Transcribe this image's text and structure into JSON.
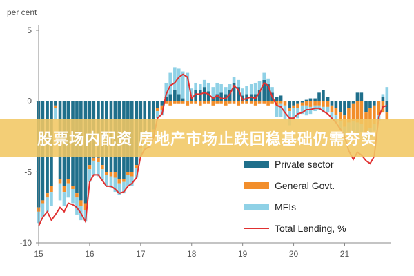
{
  "banner": {
    "text": "股票场内配资 房地产市场止跌回稳基础仍需夯实"
  },
  "chart_data": {
    "type": "bar",
    "stacked": true,
    "ylabel": "per cent",
    "ylim": [
      -10,
      5
    ],
    "yticks": [
      5,
      0,
      -5,
      -10
    ],
    "xlim": [
      15,
      21.9
    ],
    "xticks": [
      15,
      16,
      17,
      18,
      19,
      20,
      21
    ],
    "grid": false,
    "legend": "bottom-right",
    "colors": {
      "Private sector": "#1f6f8b",
      "General Govt.": "#f28e2b",
      "MFIs": "#8fd1e6",
      "Total Lending, %": "#e03030",
      "axis": "#888888"
    },
    "x": [
      15.0,
      15.08,
      15.17,
      15.25,
      15.33,
      15.42,
      15.5,
      15.58,
      15.67,
      15.75,
      15.83,
      15.92,
      16.0,
      16.08,
      16.17,
      16.25,
      16.33,
      16.42,
      16.5,
      16.58,
      16.67,
      16.75,
      16.83,
      16.92,
      17.0,
      17.08,
      17.17,
      17.25,
      17.33,
      17.42,
      17.5,
      17.58,
      17.67,
      17.75,
      17.83,
      17.92,
      18.0,
      18.08,
      18.17,
      18.25,
      18.33,
      18.42,
      18.5,
      18.58,
      18.67,
      18.75,
      18.83,
      18.92,
      19.0,
      19.08,
      19.17,
      19.25,
      19.33,
      19.42,
      19.5,
      19.58,
      19.67,
      19.75,
      19.83,
      19.92,
      20.0,
      20.08,
      20.17,
      20.25,
      20.33,
      20.42,
      20.5,
      20.58,
      20.67,
      20.75,
      20.83,
      20.92,
      21.0,
      21.08,
      21.17,
      21.25,
      21.33,
      21.42,
      21.5,
      21.58,
      21.67,
      21.75,
      21.83
    ],
    "series": [
      {
        "name": "Private sector",
        "values": [
          -7.5,
          -7,
          -6.5,
          -6,
          -0.3,
          -5.5,
          -6,
          -5.5,
          -6,
          -6.5,
          -7,
          -7.2,
          -4.5,
          -4,
          -4,
          -4.5,
          -5,
          -5,
          -5,
          -5.5,
          -5.5,
          -5,
          -5,
          -4.5,
          -3,
          -2.5,
          -2.5,
          -2,
          -0.5,
          -0.3,
          0.3,
          0.5,
          0.8,
          0.5,
          0.2,
          0,
          0.3,
          0.8,
          0.8,
          1,
          0.7,
          0.3,
          0.5,
          0.6,
          0.5,
          0.8,
          1.3,
          1,
          0.4,
          0.5,
          0.5,
          0.5,
          0.8,
          1.5,
          1.2,
          0.6,
          0.3,
          0.4,
          0,
          -0.5,
          -0.3,
          -0.2,
          -0.1,
          0.1,
          0.2,
          0.2,
          0.6,
          0.8,
          0.3,
          -0.3,
          -0.5,
          -0.8,
          -1,
          -0.5,
          -0.2,
          0.6,
          0.6,
          -0.8,
          -0.5,
          -0.3,
          0,
          0.3,
          -0.8
        ]
      },
      {
        "name": "General Govt.",
        "values": [
          -0.3,
          -0.2,
          -0.3,
          -0.4,
          -0.2,
          -0.3,
          -0.4,
          -0.3,
          -0.2,
          -0.3,
          -0.4,
          -0.5,
          -0.3,
          -0.2,
          -0.3,
          -0.3,
          -0.2,
          -0.3,
          -0.4,
          -0.3,
          -0.2,
          -0.2,
          -0.3,
          -0.2,
          -0.3,
          -0.4,
          -0.3,
          -0.2,
          -0.2,
          -0.3,
          -0.2,
          -0.3,
          -0.2,
          -0.2,
          -0.2,
          -0.3,
          -0.2,
          -0.2,
          -0.3,
          -0.2,
          -0.2,
          -0.3,
          -0.2,
          -0.2,
          -0.3,
          -0.2,
          -0.2,
          -0.3,
          -0.2,
          -0.2,
          -0.2,
          -0.3,
          -0.2,
          -0.2,
          -0.3,
          -0.2,
          -0.3,
          -0.2,
          -0.3,
          -0.2,
          -0.2,
          -0.3,
          -0.2,
          -0.3,
          -0.4,
          -0.3,
          -0.3,
          -0.4,
          -0.4,
          -0.5,
          -0.5,
          -0.6,
          -0.8,
          -1,
          -1.2,
          -1.5,
          -1.6,
          -1.5,
          -1.4,
          -1.3,
          -1,
          -0.8,
          -0.5
        ]
      },
      {
        "name": "MFIs",
        "values": [
          -0.8,
          -1,
          -1,
          -1,
          -0.8,
          -1.2,
          -1,
          -1,
          -1,
          -1.2,
          -1,
          -0.8,
          -0.9,
          -1,
          -1,
          -0.8,
          -0.8,
          -0.8,
          -1,
          -0.8,
          -0.8,
          -0.8,
          -0.7,
          -0.7,
          -0.6,
          -0.5,
          -0.5,
          -0.4,
          -0.5,
          -0.4,
          1,
          1.5,
          1.6,
          1.8,
          1.9,
          2,
          0.6,
          0.5,
          0.4,
          0.5,
          0.6,
          0.7,
          0.8,
          0.6,
          0.5,
          0.4,
          0.4,
          0.5,
          0.5,
          0.6,
          0.7,
          0.8,
          0.6,
          0.5,
          0.4,
          0.4,
          -0.8,
          -0.9,
          -1,
          -1,
          -0.8,
          -0.7,
          -0.6,
          -0.7,
          -0.5,
          -0.4,
          -0.3,
          -0.4,
          -0.4,
          -0.5,
          -0.5,
          -0.6,
          -0.6,
          -0.7,
          -0.8,
          -0.8,
          -0.6,
          -0.5,
          -0.6,
          -0.5,
          -0.4,
          0.2,
          1
        ]
      },
      {
        "name": "Total Lending, %",
        "type": "line",
        "values": [
          -8.8,
          -8.2,
          -7.8,
          -8.4,
          -8,
          -7.5,
          -7.8,
          -7.2,
          -7.3,
          -7.5,
          -7.9,
          -8.5,
          -5.7,
          -5.2,
          -5.2,
          -5.6,
          -6,
          -6,
          -6.2,
          -6.5,
          -6.4,
          -6,
          -5.8,
          -5.4,
          -3.9,
          -3.4,
          -3.2,
          -2.6,
          -1.2,
          -0.9,
          0.5,
          1.1,
          1.3,
          1.7,
          1.9,
          1.7,
          0.2,
          0.5,
          0.5,
          0.6,
          0.5,
          0.2,
          0.4,
          0.2,
          0.2,
          0.5,
          1.1,
          0.8,
          0.1,
          0.2,
          0.3,
          0.2,
          0.6,
          1.3,
          1.1,
          0.3,
          -0.3,
          -0.4,
          -0.8,
          -1.2,
          -1.2,
          -0.9,
          -0.8,
          -0.6,
          -0.6,
          -0.5,
          -0.5,
          -0.7,
          -0.9,
          -1.2,
          -1.5,
          -2,
          -2.5,
          -3.5,
          -4.1,
          -3.6,
          -3.8,
          -4.2,
          -4.4,
          -3.9,
          -1.1,
          -0.4,
          -0.3
        ]
      }
    ]
  }
}
